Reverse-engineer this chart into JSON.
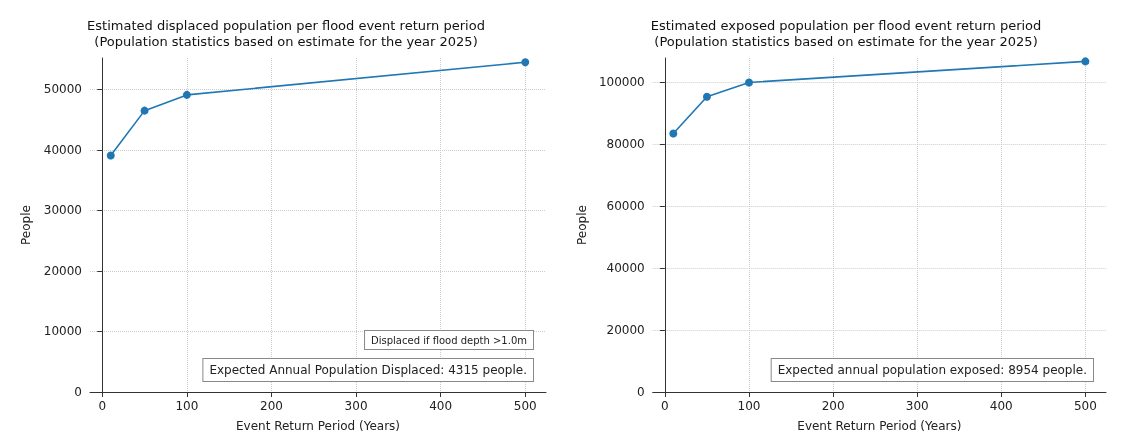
{
  "chart_data": [
    {
      "type": "line",
      "title": "Estimated displaced population per flood event return period",
      "subtitle": "(Population statistics based on estimate for the year 2025)",
      "xlabel": "Event Return Period (Years)",
      "ylabel": "People",
      "x": [
        10,
        50,
        100,
        500
      ],
      "series": [
        {
          "color": "#1f77b4",
          "values": [
            39100,
            46500,
            49100,
            54500
          ]
        }
      ],
      "xlim": [
        -14.5,
        524.5
      ],
      "xticks": [
        0,
        100,
        200,
        300,
        400,
        500
      ],
      "ylim": [
        0,
        55200
      ],
      "yticks": [
        0,
        10000,
        20000,
        30000,
        40000,
        50000
      ],
      "grid": true,
      "marker": "circle",
      "line_style": "solid",
      "annotations": [
        "Displaced if flood depth >1.0m",
        "Expected Annual Population Displaced: 4315 people."
      ]
    },
    {
      "type": "line",
      "title": "Estimated exposed population per flood event return period",
      "subtitle": "(Population statistics based on estimate for the year 2025)",
      "xlabel": "Event Return Period (Years)",
      "ylabel": "People",
      "x": [
        10,
        50,
        100,
        500
      ],
      "series": [
        {
          "color": "#1f77b4",
          "values": [
            83500,
            95400,
            100000,
            106800
          ]
        }
      ],
      "xlim": [
        -14.5,
        524.5
      ],
      "xticks": [
        0,
        100,
        200,
        300,
        400,
        500
      ],
      "ylim": [
        0,
        107900
      ],
      "yticks": [
        0,
        20000,
        40000,
        60000,
        80000,
        100000
      ],
      "grid": true,
      "marker": "circle",
      "line_style": "solid",
      "annotations": [
        "Expected annual population exposed: 8954 people."
      ]
    }
  ]
}
